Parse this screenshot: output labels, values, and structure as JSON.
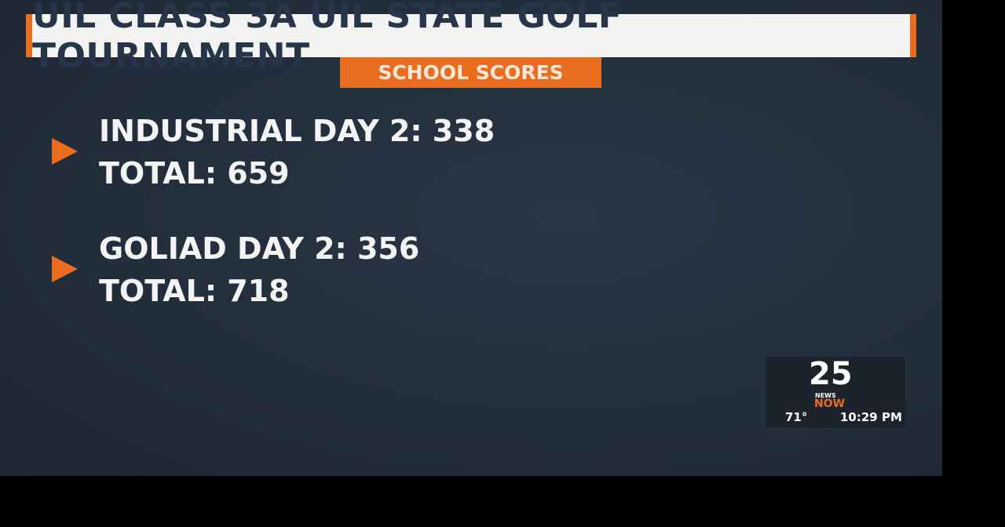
{
  "header": {
    "title": "UIL CLASS 3A UIL STATE GOLF TOURNAMENT",
    "subtitle": "SCHOOL SCORES"
  },
  "entries": [
    {
      "line1": "INDUSTRIAL DAY 2: 338",
      "line2": "TOTAL: 659"
    },
    {
      "line1": "GOLIAD DAY 2: 356",
      "line2": "TOTAL: 718"
    }
  ],
  "logo": {
    "number": "25",
    "network": "NEWS",
    "brand": "NOW",
    "temperature": "71°",
    "time": "10:29 PM"
  }
}
